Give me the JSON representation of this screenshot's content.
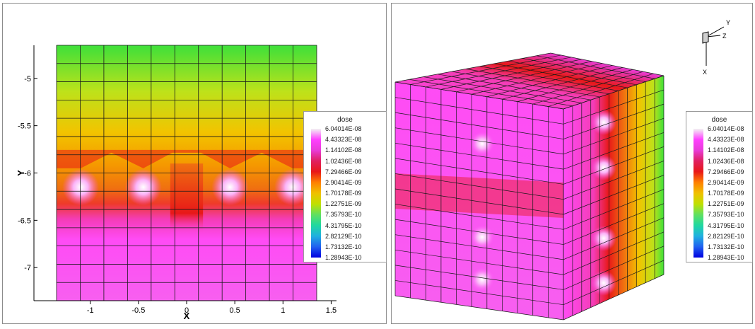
{
  "chart_data": [
    {
      "type": "heatmap",
      "title": "",
      "xlabel": "X",
      "ylabel": "Y",
      "xlim": [
        -1.35,
        1.35
      ],
      "ylim": [
        -7.35,
        -4.65
      ],
      "x_ticks": [
        "-1",
        "-0.5",
        "0",
        "0.5",
        "1",
        "1.5"
      ],
      "x_tick_values": [
        -1,
        -0.5,
        0,
        0.5,
        1,
        1.5
      ],
      "y_ticks": [
        "-5",
        "-5.5",
        "-6",
        "-6.5",
        "-7"
      ],
      "y_tick_values": [
        -5,
        -5.5,
        -6,
        -6.5,
        -7
      ],
      "grid": true,
      "legend_placement": "right",
      "legend_title": "dose",
      "legend_levels": [
        "6.04014E-08",
        "4.43323E-08",
        "1.14102E-08",
        "1.02436E-08",
        "7.29466E-09",
        "2.90414E-09",
        "1.70178E-09",
        "1.22751E-09",
        "7.35793E-10",
        "4.31795E-10",
        "2.82129E-10",
        "1.73132E-10",
        "1.28943E-10"
      ],
      "hotspots_xy": [
        [
          -1.1,
          -6.15
        ],
        [
          -0.45,
          -6.15
        ],
        [
          0.45,
          -6.15
        ],
        [
          1.1,
          -6.15
        ]
      ]
    },
    {
      "type": "heatmap",
      "title": "",
      "view": "3d-cube",
      "axis_triad": [
        "Y",
        "Z",
        "X"
      ],
      "legend_placement": "right",
      "legend_title": "dose",
      "legend_levels": [
        "6.04014E-08",
        "4.43323E-08",
        "1.14102E-08",
        "1.02436E-08",
        "7.29466E-09",
        "2.90414E-09",
        "1.70178E-09",
        "1.22751E-09",
        "7.35793E-10",
        "4.31795E-10",
        "2.82129E-10",
        "1.73132E-10",
        "1.28943E-10"
      ]
    }
  ],
  "colors": {
    "scale": [
      "#f2f2f2",
      "#ff40ff",
      "#e83cd8",
      "#e02060",
      "#e81818",
      "#ff8000",
      "#f0c000",
      "#c0e000",
      "#60e060",
      "#20d8a0",
      "#20b0e0",
      "#2060f0",
      "#0000e0"
    ],
    "frame": "#8c8c8c",
    "grid": "#1a1a1a"
  }
}
